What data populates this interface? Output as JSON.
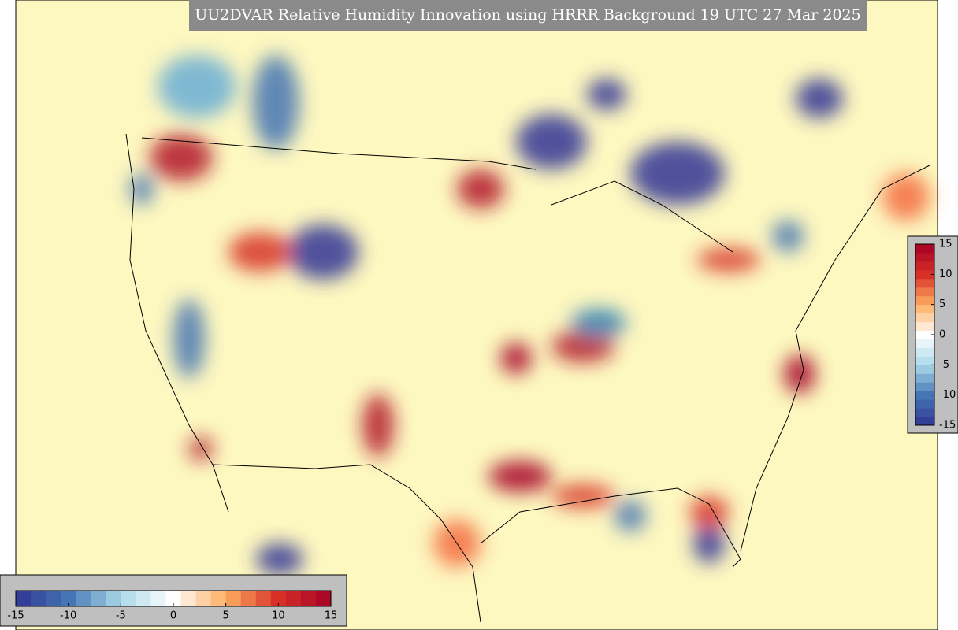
{
  "title": "UU2DVAR Relative Humidity Innovation using HRRR Background 19 UTC 27 Mar 2025",
  "colormap": [
    "#313695",
    "#4575b4",
    "#abd9e9",
    "#ffffff",
    "#fdae61",
    "#d73027",
    "#a50026"
  ],
  "colorbar_right": {
    "range": [
      -15,
      15
    ],
    "ticks": [
      15,
      10,
      5,
      0,
      -5,
      -10,
      -15
    ]
  },
  "colorbar_bottom": {
    "range": [
      -15,
      15
    ],
    "ticks": [
      -15,
      -10,
      -5,
      0,
      5,
      10,
      15
    ]
  }
}
